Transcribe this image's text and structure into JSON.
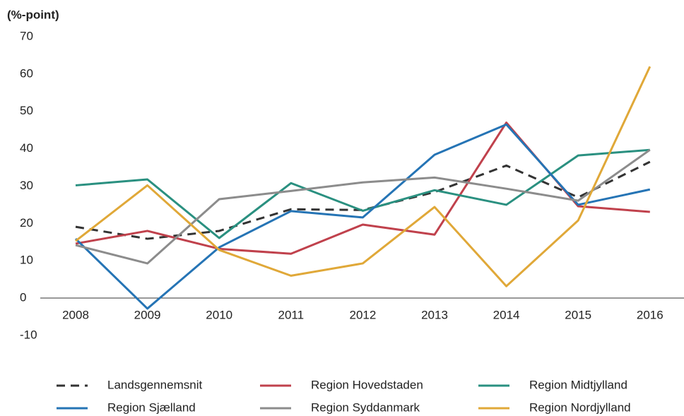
{
  "chart_data": {
    "type": "line",
    "title": "(%-point)",
    "categories": [
      "2008",
      "2009",
      "2010",
      "2011",
      "2012",
      "2013",
      "2014",
      "2015",
      "2016"
    ],
    "ylim": [
      -10,
      70
    ],
    "yticks": [
      -10,
      0,
      10,
      20,
      30,
      40,
      50,
      60,
      70
    ],
    "grid": false,
    "legend": "bottom",
    "series": [
      {
        "name": "Landsgennemsnit",
        "color": "#333333",
        "dashed": true,
        "values": [
          19.1,
          15.9,
          18,
          23.8,
          23.6,
          28.4,
          35.5,
          27,
          36.5
        ]
      },
      {
        "name": "Region Hovedstaden",
        "color": "#c0414c",
        "values": [
          14.6,
          18,
          13.2,
          11.9,
          19.7,
          17,
          47,
          24.6,
          23.1
        ]
      },
      {
        "name": "Region Midtjylland",
        "color": "#2a9080",
        "values": [
          30.2,
          31.8,
          16.1,
          30.8,
          23.4,
          28.9,
          25,
          38.2,
          39.7
        ]
      },
      {
        "name": "Region Sjælland",
        "color": "#2574b5",
        "values": [
          15.9,
          -2.8,
          13.6,
          23.3,
          21.6,
          38.4,
          46.5,
          25,
          29.1
        ]
      },
      {
        "name": "Region Syddanmark",
        "color": "#8c8c8c",
        "values": [
          14.2,
          9.3,
          26.5,
          28.7,
          31,
          32.3,
          29.3,
          26.1,
          39.7
        ]
      },
      {
        "name": "Region Nordjylland",
        "color": "#e0a838",
        "values": [
          15.3,
          30.2,
          12.9,
          6,
          9.3,
          24.4,
          3.2,
          20.8,
          62
        ]
      }
    ]
  }
}
